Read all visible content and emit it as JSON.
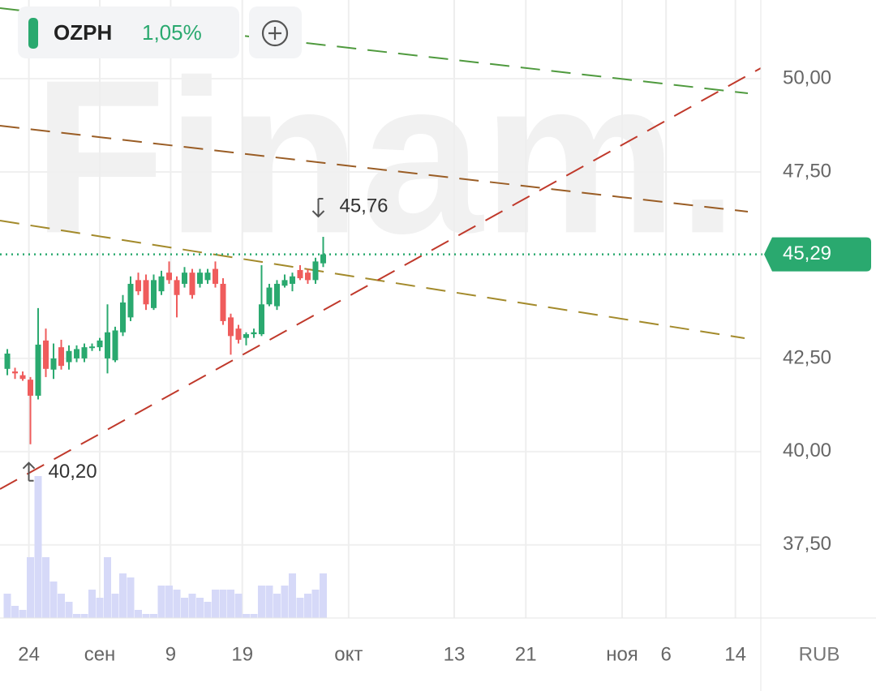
{
  "header": {
    "ticker": "OZPH",
    "change": {
      "value": 1.05,
      "label": "1,05%"
    }
  },
  "chart_data": {
    "type": "candlestick",
    "watermark": "Finam.",
    "currency": "RUB",
    "x": [
      -4,
      -3,
      -2,
      -1,
      0,
      1,
      2,
      3,
      4,
      5,
      6,
      7,
      8,
      9,
      10,
      11,
      12,
      13,
      14,
      15,
      16,
      17,
      18,
      19,
      20,
      21,
      22,
      23,
      24,
      25,
      26,
      27,
      28,
      29,
      30,
      31,
      32,
      33,
      34,
      35,
      36,
      37
    ],
    "open": [
      42.22,
      42.15,
      42.05,
      41.93,
      41.5,
      42.98,
      42.2,
      42.8,
      42.4,
      42.5,
      42.5,
      42.78,
      42.8,
      42.5,
      42.45,
      43.2,
      43.6,
      44.6,
      44.6,
      43.85,
      44.3,
      44.8,
      44.6,
      44.5,
      44.8,
      44.5,
      44.6,
      44.9,
      44.5,
      43.6,
      43.3,
      43.05,
      43.15,
      43.15,
      43.95,
      43.9,
      44.45,
      44.5,
      44.87,
      44.8,
      44.6,
      45.05
    ],
    "high": [
      42.75,
      42.25,
      42.15,
      42.0,
      43.85,
      43.3,
      42.9,
      43.0,
      42.85,
      42.85,
      42.9,
      42.9,
      43.05,
      43.95,
      43.35,
      44.2,
      44.7,
      44.8,
      44.75,
      44.75,
      44.85,
      45.1,
      44.7,
      44.95,
      44.9,
      44.9,
      44.9,
      45.1,
      44.65,
      43.7,
      43.4,
      43.2,
      43.3,
      45.0,
      44.5,
      44.6,
      44.75,
      44.8,
      45.0,
      44.9,
      45.2,
      45.76
    ],
    "low": [
      42.05,
      41.95,
      41.9,
      40.2,
      41.4,
      42.0,
      41.95,
      42.2,
      42.2,
      42.4,
      42.4,
      42.7,
      42.7,
      42.1,
      42.4,
      43.1,
      43.5,
      44.2,
      43.8,
      43.8,
      44.2,
      44.5,
      43.6,
      44.4,
      44.1,
      44.4,
      44.5,
      44.4,
      43.4,
      42.6,
      42.9,
      42.85,
      43.05,
      43.1,
      43.9,
      43.8,
      44.4,
      44.3,
      44.6,
      44.5,
      44.5,
      44.95
    ],
    "close": [
      42.63,
      42.1,
      41.95,
      41.5,
      42.87,
      42.22,
      42.5,
      42.3,
      42.7,
      42.75,
      42.8,
      42.82,
      42.98,
      43.2,
      43.25,
      44.0,
      44.5,
      44.3,
      43.95,
      44.6,
      44.7,
      44.6,
      44.2,
      44.8,
      44.2,
      44.8,
      44.8,
      44.5,
      43.5,
      43.1,
      43.0,
      43.15,
      43.2,
      43.95,
      44.4,
      44.5,
      44.6,
      44.7,
      44.65,
      44.6,
      45.1,
      45.29
    ],
    "volume": [
      30,
      15,
      10,
      75,
      175,
      75,
      45,
      30,
      20,
      5,
      5,
      35,
      25,
      75,
      30,
      55,
      50,
      10,
      5,
      5,
      40,
      40,
      35,
      25,
      30,
      25,
      20,
      35,
      35,
      35,
      30,
      5,
      5,
      40,
      40,
      30,
      40,
      55,
      25,
      30,
      35,
      55
    ],
    "up_color": "#2aa96f",
    "down_color": "#ef5c5c",
    "volume_color": "#d6d9f8",
    "ylim": [
      35.54,
      52.11
    ],
    "yticks": [
      {
        "value": 50,
        "label": "50,00"
      },
      {
        "value": 47.5,
        "label": "47,50"
      },
      {
        "value": 42.5,
        "label": "42,50"
      },
      {
        "value": 40,
        "label": "40,00"
      },
      {
        "value": 37.5,
        "label": "37,50"
      }
    ],
    "xlim": [
      -4.95,
      93.8
    ],
    "xticks": [
      {
        "value": -1.2,
        "label": "24"
      },
      {
        "value": 8,
        "label": "сен"
      },
      {
        "value": 17.2,
        "label": "9"
      },
      {
        "value": 26.5,
        "label": "19"
      },
      {
        "value": 40.3,
        "label": "окт"
      },
      {
        "value": 54,
        "label": "13"
      },
      {
        "value": 63.3,
        "label": "21"
      },
      {
        "value": 75.8,
        "label": "ноя"
      },
      {
        "value": 81.5,
        "label": "6"
      },
      {
        "value": 90.5,
        "label": "14"
      }
    ],
    "last_price": {
      "value": 45.29,
      "label": "45,29"
    },
    "max_marker": {
      "value": 45.76,
      "label": "45,76"
    },
    "min_marker": {
      "value": 40.2,
      "label": "40,20"
    }
  }
}
